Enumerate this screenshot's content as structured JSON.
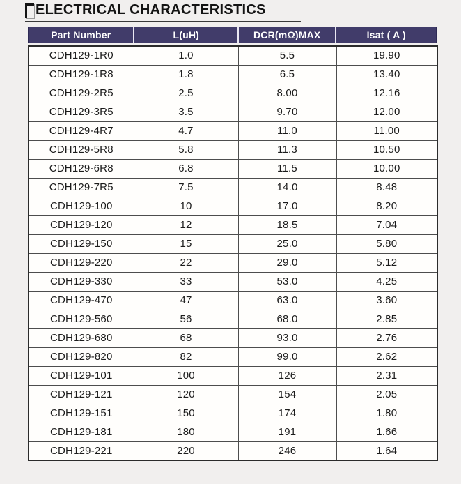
{
  "page": {
    "background_color": "#f1efee"
  },
  "title": {
    "text": "ELECTRICAL CHARACTERISTICS"
  },
  "table": {
    "header_bg_color": "#413c6a",
    "header_text_color": "#ffffff",
    "headers": [
      "Part Number",
      "L(uH)",
      "DCR(mΩ)MAX",
      "Isat ( A )"
    ],
    "rows": [
      [
        "CDH129-1R0",
        "1.0",
        "5.5",
        "19.90"
      ],
      [
        "CDH129-1R8",
        "1.8",
        "6.5",
        "13.40"
      ],
      [
        "CDH129-2R5",
        "2.5",
        "8.00",
        "12.16"
      ],
      [
        "CDH129-3R5",
        "3.5",
        "9.70",
        "12.00"
      ],
      [
        "CDH129-4R7",
        "4.7",
        "11.0",
        "11.00"
      ],
      [
        "CDH129-5R8",
        "5.8",
        "11.3",
        "10.50"
      ],
      [
        "CDH129-6R8",
        "6.8",
        "11.5",
        "10.00"
      ],
      [
        "CDH129-7R5",
        "7.5",
        "14.0",
        "8.48"
      ],
      [
        "CDH129-100",
        "10",
        "17.0",
        "8.20"
      ],
      [
        "CDH129-120",
        "12",
        "18.5",
        "7.04"
      ],
      [
        "CDH129-150",
        "15",
        "25.0",
        "5.80"
      ],
      [
        "CDH129-220",
        "22",
        "29.0",
        "5.12"
      ],
      [
        "CDH129-330",
        "33",
        "53.0",
        "4.25"
      ],
      [
        "CDH129-470",
        "47",
        "63.0",
        "3.60"
      ],
      [
        "CDH129-560",
        "56",
        "68.0",
        "2.85"
      ],
      [
        "CDH129-680",
        "68",
        "93.0",
        "2.76"
      ],
      [
        "CDH129-820",
        "82",
        "99.0",
        "2.62"
      ],
      [
        "CDH129-101",
        "100",
        "126",
        "2.31"
      ],
      [
        "CDH129-121",
        "120",
        "154",
        "2.05"
      ],
      [
        "CDH129-151",
        "150",
        "174",
        "1.80"
      ],
      [
        "CDH129-181",
        "180",
        "191",
        "1.66"
      ],
      [
        "CDH129-221",
        "220",
        "246",
        "1.64"
      ]
    ]
  }
}
